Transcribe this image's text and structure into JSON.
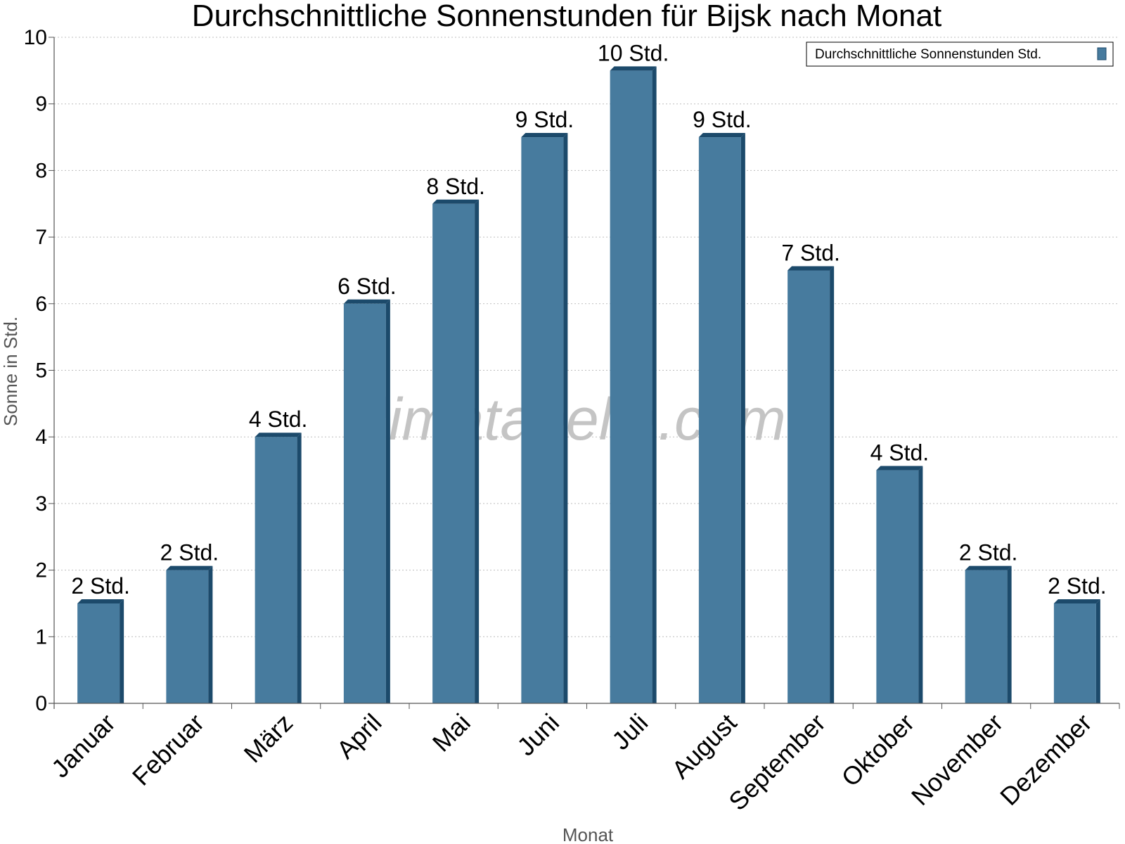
{
  "chart_data": {
    "type": "bar",
    "title": "Durchschnittliche Sonnenstunden für Bijsk nach Monat",
    "xlabel": "Monat",
    "ylabel": "Sonne in Std.",
    "ylim": [
      0,
      10
    ],
    "yticks": [
      "0",
      "1",
      "2",
      "3",
      "4",
      "5",
      "6",
      "7",
      "8",
      "9",
      "10"
    ],
    "grid": true,
    "legend_position": "top-right",
    "watermark": "klimatabelle.com",
    "categories": [
      "Januar",
      "Februar",
      "März",
      "April",
      "Mai",
      "Juni",
      "Juli",
      "August",
      "September",
      "Oktober",
      "November",
      "Dezember"
    ],
    "series": [
      {
        "name": "Durchschnittliche Sonnenstunden Std.",
        "color": "#477b9e",
        "values": [
          1.5,
          2,
          4,
          6,
          7.5,
          8.5,
          9.5,
          8.5,
          6.5,
          3.5,
          2,
          1.5
        ],
        "labels": [
          "2 Std.",
          "2 Std.",
          "4 Std.",
          "6 Std.",
          "8 Std.",
          "9 Std.",
          "10 Std.",
          "9 Std.",
          "7 Std.",
          "4 Std.",
          "2 Std.",
          "2 Std."
        ]
      }
    ]
  }
}
